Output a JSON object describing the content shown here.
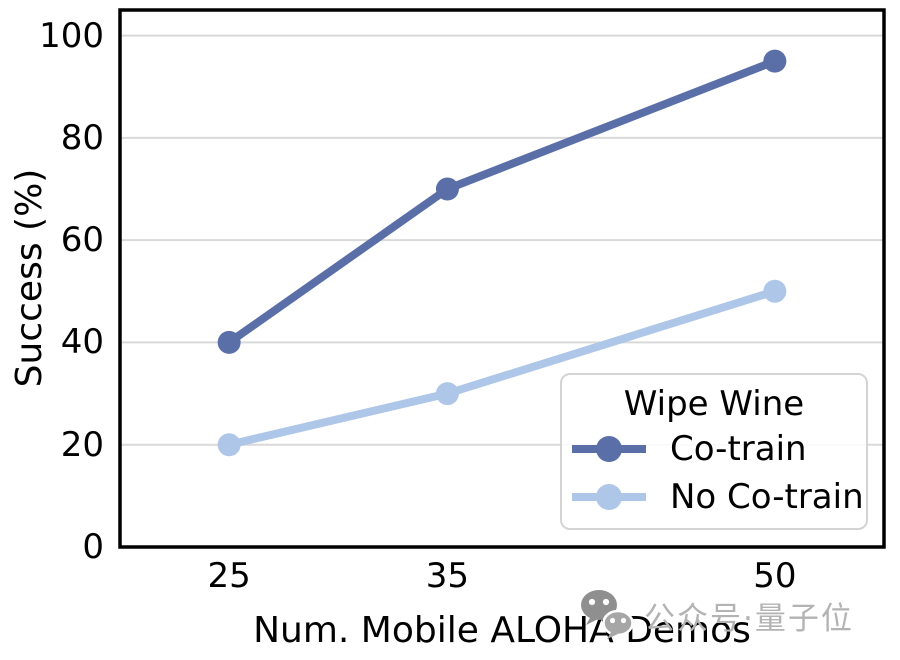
{
  "chart_data": {
    "type": "line",
    "xlabel": "Num. Mobile ALOHA Demos",
    "ylabel": "Success (%)",
    "x": [
      25,
      35,
      50
    ],
    "xtick_labels": [
      "25",
      "35",
      "50"
    ],
    "ytick_values": [
      0,
      20,
      40,
      60,
      80,
      100
    ],
    "ytick_labels": [
      "0",
      "20",
      "40",
      "60",
      "80",
      "100"
    ],
    "xlim": [
      20,
      55
    ],
    "ylim": [
      0,
      105
    ],
    "grid": "horizontal-only",
    "legend": {
      "title": "Wipe Wine",
      "position": "lower-right"
    },
    "series": [
      {
        "name": "Co-train",
        "values": [
          40,
          70,
          95
        ],
        "color": "#5a6fa8"
      },
      {
        "name": "No Co-train",
        "values": [
          20,
          30,
          50
        ],
        "color": "#aec6e8"
      }
    ]
  },
  "watermark": {
    "text": "公众号·量子位",
    "icon": "wechat-icon",
    "text_color": "#b3b3b3",
    "icon_color": "#909090"
  },
  "style_colors": {
    "grid": "#d9d9d9",
    "axis_frame": "#000000",
    "background": "#ffffff",
    "legend_border": "#d4d4d4"
  }
}
